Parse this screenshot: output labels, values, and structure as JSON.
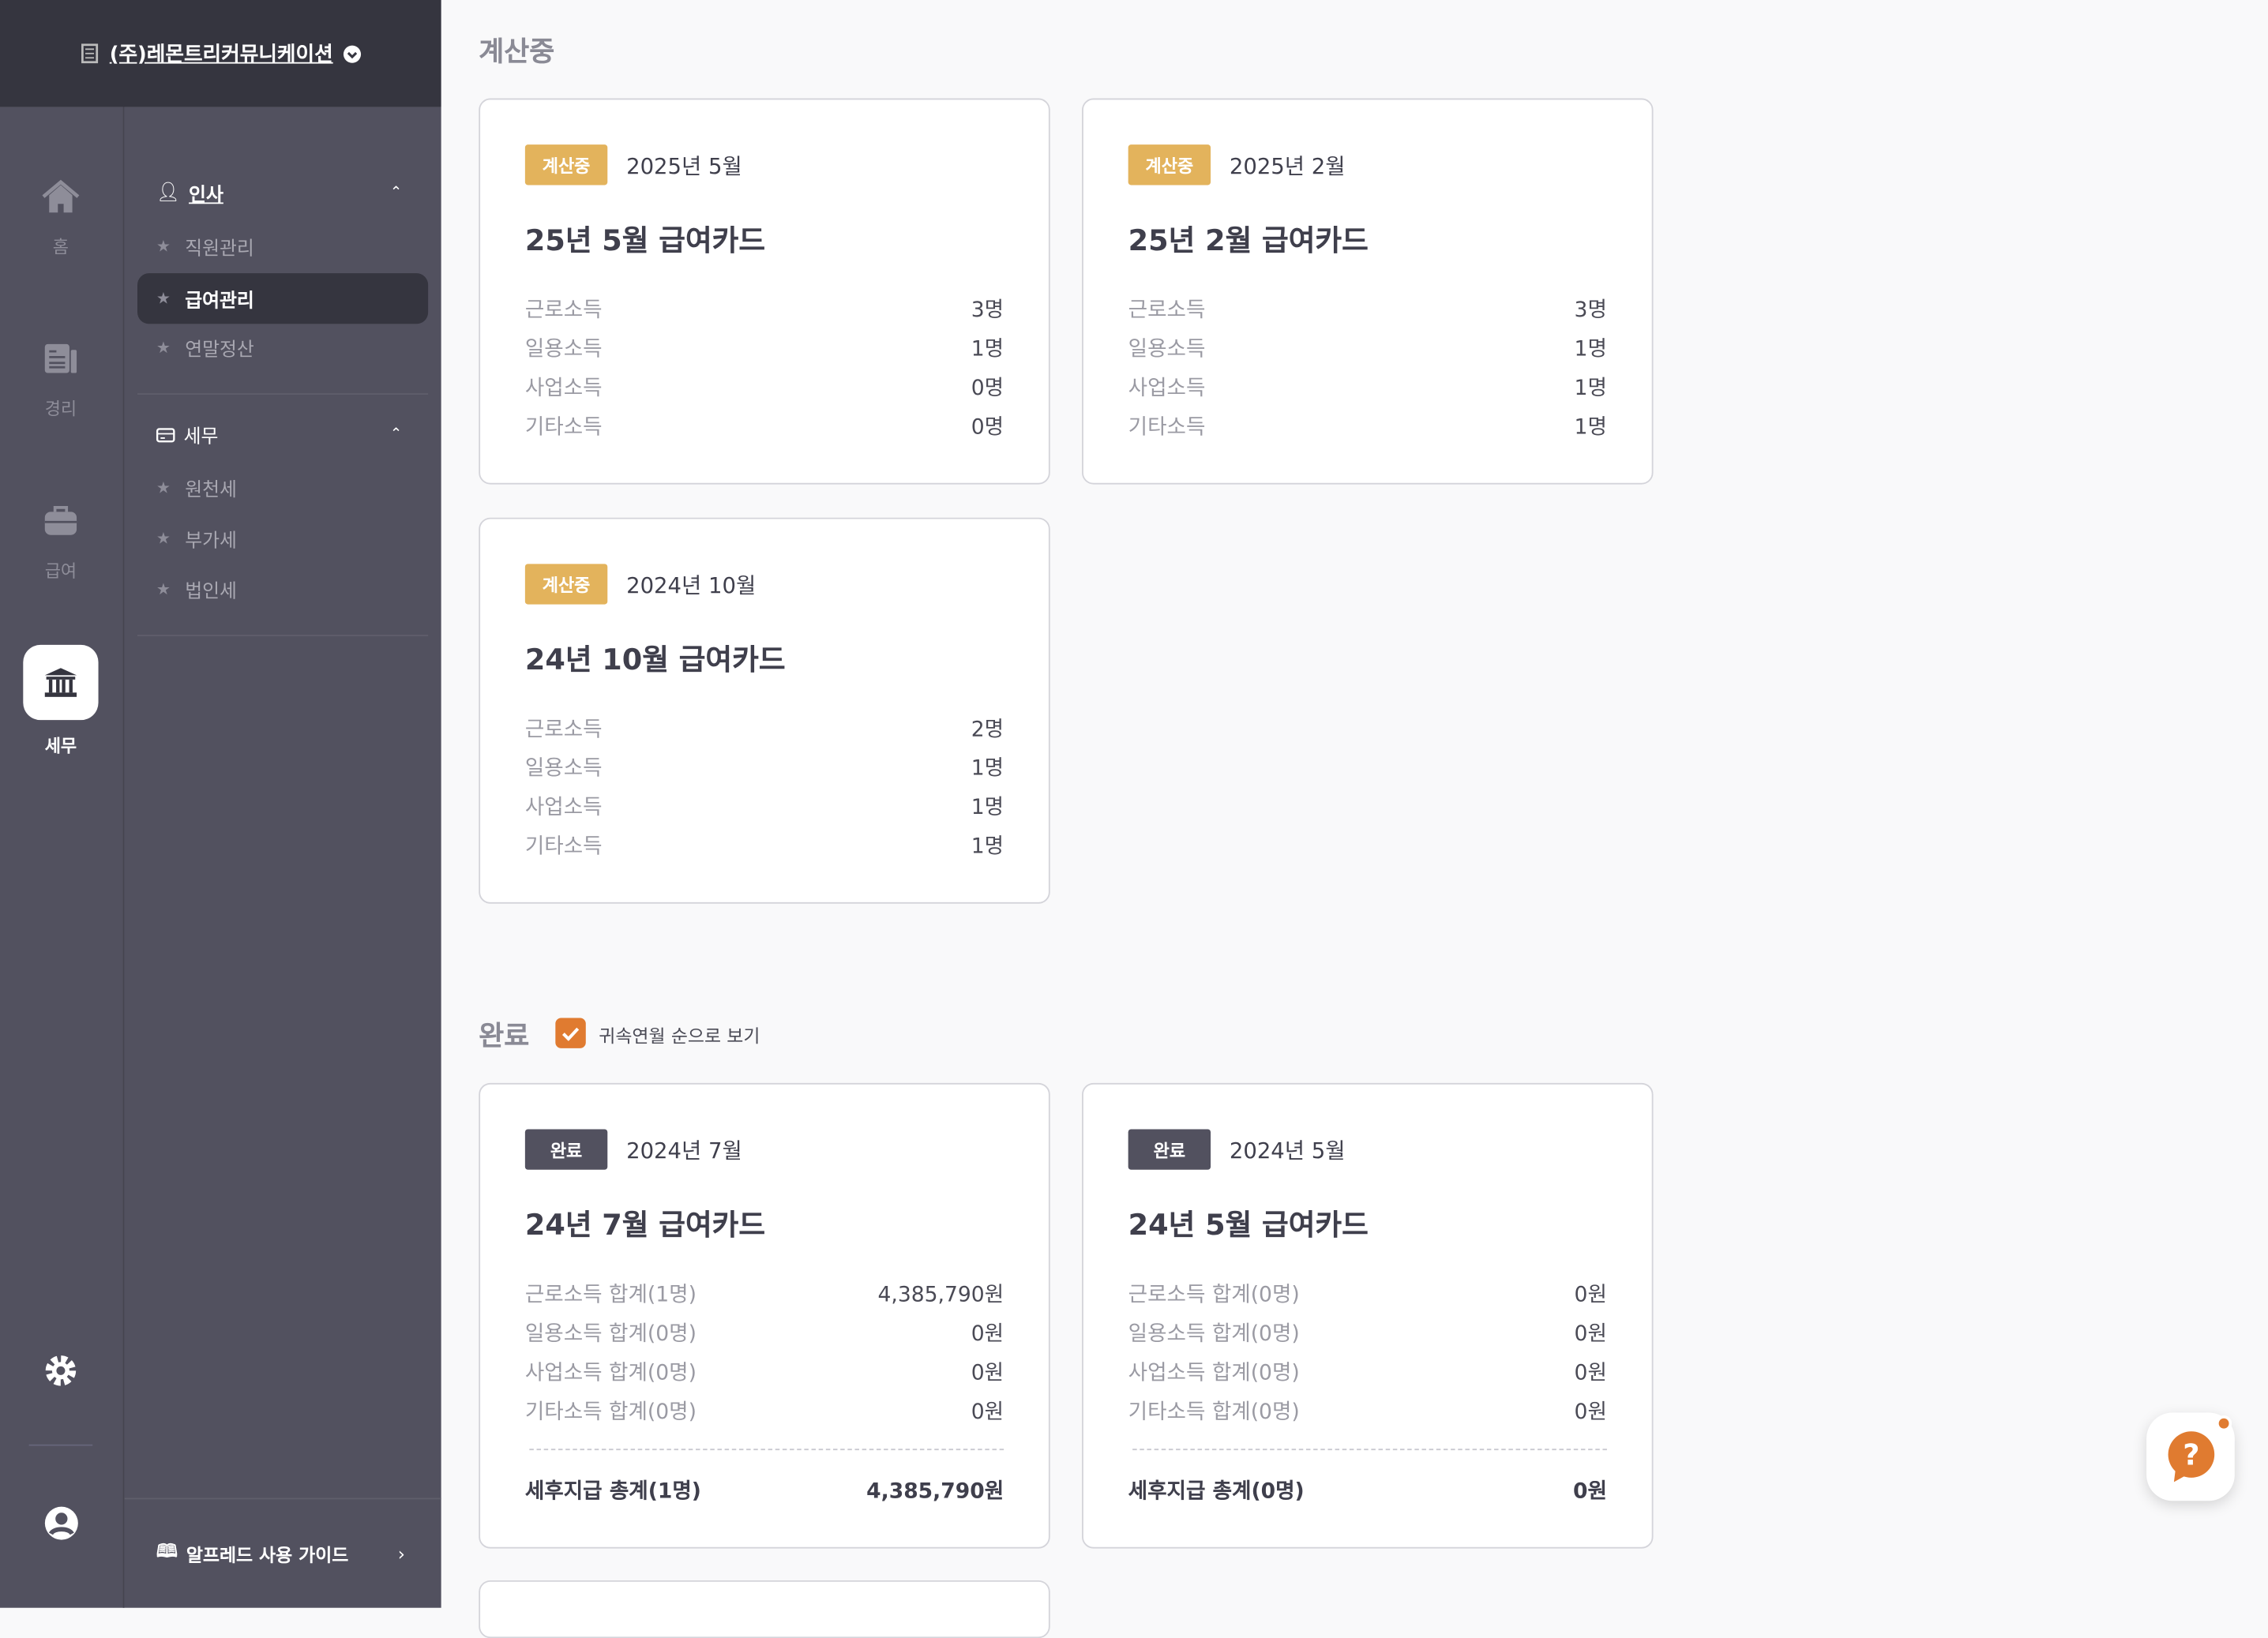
{
  "company": {
    "name": "(주)레몬트리커뮤니케이션"
  },
  "rail": [
    {
      "label": "홈",
      "icon": "home-icon"
    },
    {
      "label": "경리",
      "icon": "ledger-icon"
    },
    {
      "label": "급여",
      "icon": "briefcase-icon"
    },
    {
      "label": "세무",
      "icon": "bank-icon",
      "active": true
    }
  ],
  "sidebar": {
    "groups": [
      {
        "label": "인사",
        "icon": "person-icon",
        "items": [
          {
            "label": "직원관리"
          },
          {
            "label": "급여관리",
            "active": true
          },
          {
            "label": "연말정산"
          }
        ]
      },
      {
        "label": "세무",
        "icon": "card-icon",
        "items": [
          {
            "label": "원천세"
          },
          {
            "label": "부가세"
          },
          {
            "label": "법인세"
          }
        ]
      }
    ],
    "guide": "알프레드 사용 가이드"
  },
  "sections": {
    "calculating": "계산중",
    "done": "완료",
    "sort_label": "귀속연월 순으로 보기",
    "sort_checked": true
  },
  "calc_cards": [
    {
      "badge": "계산중",
      "date": "2025년 5월",
      "title": "25년 5월 급여카드",
      "rows": [
        {
          "l": "근로소득",
          "v": "3명"
        },
        {
          "l": "일용소득",
          "v": "1명"
        },
        {
          "l": "사업소득",
          "v": "0명"
        },
        {
          "l": "기타소득",
          "v": "0명"
        }
      ]
    },
    {
      "badge": "계산중",
      "date": "2025년 2월",
      "title": "25년 2월 급여카드",
      "rows": [
        {
          "l": "근로소득",
          "v": "3명"
        },
        {
          "l": "일용소득",
          "v": "1명"
        },
        {
          "l": "사업소득",
          "v": "1명"
        },
        {
          "l": "기타소득",
          "v": "1명"
        }
      ]
    },
    {
      "badge": "계산중",
      "date": "2024년 10월",
      "title": "24년 10월 급여카드",
      "rows": [
        {
          "l": "근로소득",
          "v": "2명"
        },
        {
          "l": "일용소득",
          "v": "1명"
        },
        {
          "l": "사업소득",
          "v": "1명"
        },
        {
          "l": "기타소득",
          "v": "1명"
        }
      ]
    }
  ],
  "done_cards": [
    {
      "badge": "완료",
      "date": "2024년 7월",
      "title": "24년 7월 급여카드",
      "rows": [
        {
          "l": "근로소득 합계(1명)",
          "v": "4,385,790원"
        },
        {
          "l": "일용소득 합계(0명)",
          "v": "0원"
        },
        {
          "l": "사업소득 합계(0명)",
          "v": "0원"
        },
        {
          "l": "기타소득 합계(0명)",
          "v": "0원"
        }
      ],
      "total": {
        "l": "세후지급 총계(1명)",
        "v": "4,385,790원"
      }
    },
    {
      "badge": "완료",
      "date": "2024년 5월",
      "title": "24년 5월 급여카드",
      "rows": [
        {
          "l": "근로소득 합계(0명)",
          "v": "0원"
        },
        {
          "l": "일용소득 합계(0명)",
          "v": "0원"
        },
        {
          "l": "사업소득 합계(0명)",
          "v": "0원"
        },
        {
          "l": "기타소득 합계(0명)",
          "v": "0원"
        }
      ],
      "total": {
        "l": "세후지급 총계(0명)",
        "v": "0원"
      }
    }
  ],
  "colors": {
    "calc_badge": "#e3b35c",
    "done_badge": "#52515f",
    "accent": "#e07b30",
    "sidebar": "#52515f",
    "topbar": "#35353f"
  }
}
